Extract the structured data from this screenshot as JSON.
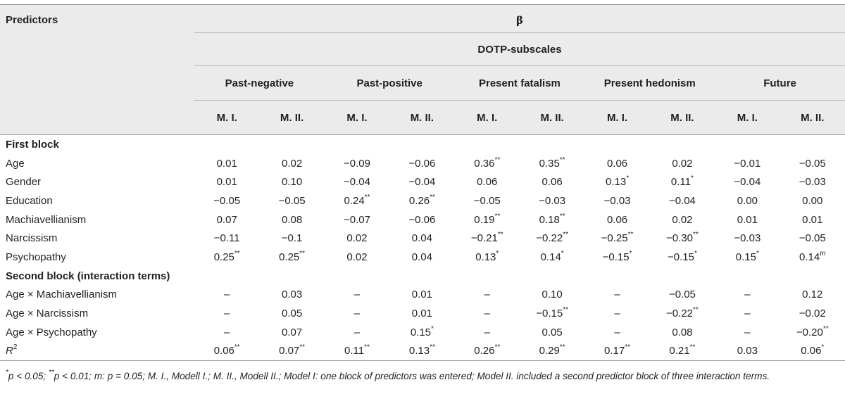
{
  "header": {
    "predictors_label": "Predictors",
    "beta_label": "β",
    "dotp_label": "DOTP-subscales",
    "subscales": [
      "Past-negative",
      "Past-positive",
      "Present fatalism",
      "Present hedonism",
      "Future"
    ],
    "models": [
      "M. I.",
      "M. II.",
      "M. I.",
      "M. II.",
      "M. I.",
      "M. II.",
      "M. I.",
      "M. II.",
      "M. I.",
      "M. II."
    ]
  },
  "sections": {
    "first_block": "First block",
    "second_block": "Second block (interaction terms)"
  },
  "rows_first": [
    {
      "label": "Age",
      "values": [
        "0.01",
        "0.02",
        "−0.09",
        "−0.06",
        "0.36**",
        "0.35**",
        "0.06",
        "0.02",
        "−0.01",
        "−0.05"
      ]
    },
    {
      "label": "Gender",
      "values": [
        "0.01",
        "0.10",
        "−0.04",
        "−0.04",
        "0.06",
        "0.06",
        "0.13*",
        "0.11*",
        "−0.04",
        "−0.03"
      ]
    },
    {
      "label": "Education",
      "values": [
        "−0.05",
        "−0.05",
        "0.24**",
        "0.26**",
        "−0.05",
        "−0.03",
        "−0.03",
        "−0.04",
        "0.00",
        "0.00"
      ]
    },
    {
      "label": "Machiavellianism",
      "values": [
        "0.07",
        "0.08",
        "−0.07",
        "−0.06",
        "0.19**",
        "0.18**",
        "0.06",
        "0.02",
        "0.01",
        "0.01"
      ]
    },
    {
      "label": "Narcissism",
      "values": [
        "−0.11",
        "−0.1",
        "0.02",
        "0.04",
        "−0.21**",
        "−0.22**",
        "−0.25**",
        "−0.30**",
        "−0.03",
        "−0.05"
      ]
    },
    {
      "label": "Psychopathy",
      "values": [
        "0.25**",
        "0.25**",
        "0.02",
        "0.04",
        "0.13*",
        "0.14*",
        "−0.15*",
        "−0.15*",
        "0.15*",
        "0.14m"
      ]
    }
  ],
  "rows_second": [
    {
      "label": "Age × Machiavellianism",
      "values": [
        "–",
        "0.03",
        "–",
        "0.01",
        "–",
        "0.10",
        "–",
        "−0.05",
        "–",
        "0.12"
      ]
    },
    {
      "label": "Age × Narcissism",
      "values": [
        "–",
        "0.05",
        "–",
        "0.01",
        "–",
        "−0.15**",
        "–",
        "−0.22**",
        "–",
        "−0.02"
      ]
    },
    {
      "label": "Age × Psychopathy",
      "values": [
        "–",
        "0.07",
        "–",
        "0.15*",
        "–",
        "0.05",
        "–",
        "0.08",
        "–",
        "−0.20**"
      ]
    }
  ],
  "r_squared": {
    "label": "R2",
    "values": [
      "0.06**",
      "0.07**",
      "0.11**",
      "0.13**",
      "0.26**",
      "0.29**",
      "0.17**",
      "0.21**",
      "0.03",
      "0.06*"
    ]
  },
  "footnote": "*p < 0.05; **p < 0.01; m: p = 0.05; M. I., Modell I.; M. II., Modell II.; Model I: one block of predictors was entered; Model II. included a second predictor block of three interaction terms."
}
